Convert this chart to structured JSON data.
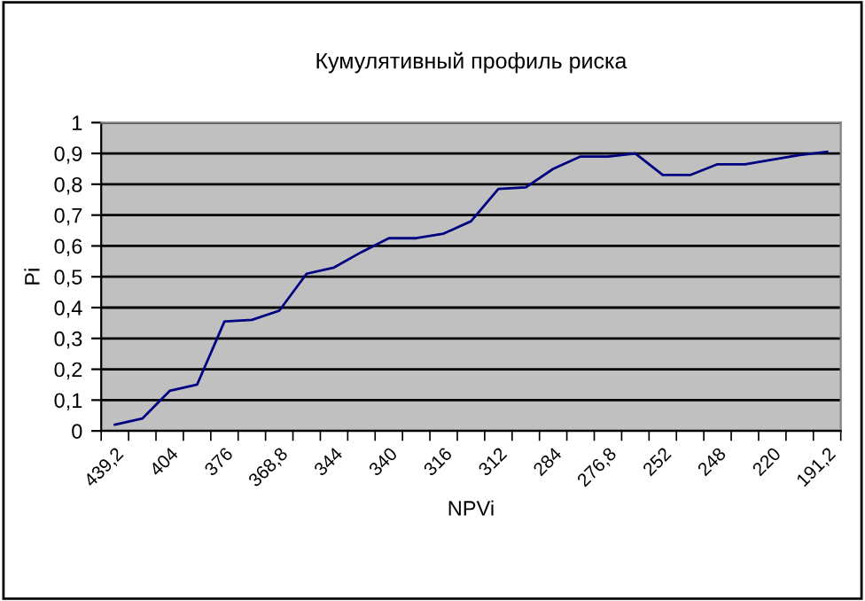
{
  "chart_data": {
    "type": "line",
    "title": "Кумулятивный профиль риска",
    "xlabel": "NPVi",
    "ylabel": "Pi",
    "categories": [
      "439,2",
      null,
      "404",
      null,
      "376",
      null,
      "368,8",
      null,
      "344",
      null,
      "340",
      null,
      "316",
      null,
      "312",
      null,
      "284",
      null,
      "276,8",
      null,
      "252",
      null,
      "248",
      null,
      "220",
      null,
      "191,2"
    ],
    "series": [
      {
        "color": "#000080",
        "values": [
          0.02,
          0.04,
          0.13,
          0.15,
          0.355,
          0.36,
          0.39,
          0.51,
          0.53,
          0.58,
          0.625,
          0.625,
          0.64,
          0.68,
          0.785,
          0.79,
          0.85,
          0.89,
          0.89,
          0.9,
          0.83,
          0.83,
          0.865,
          0.865,
          0.88,
          0.895,
          0.905
        ]
      }
    ],
    "ylim": [
      0,
      1
    ],
    "yticks": [
      0,
      {
        "value": 0.1,
        "label": "0,1"
      },
      {
        "value": 0.2,
        "label": "0,2"
      },
      {
        "value": 0.3,
        "label": "0,3"
      },
      {
        "value": 0.4,
        "label": "0,4"
      },
      {
        "value": 0.5,
        "label": "0,5"
      },
      {
        "value": 0.6,
        "label": "0,6"
      },
      {
        "value": 0.7,
        "label": "0,7"
      },
      {
        "value": 0.8,
        "label": "0,8"
      },
      {
        "value": 0.9,
        "label": "0,9"
      },
      1
    ],
    "grid": "y",
    "marker": "none",
    "line_style": "solid"
  }
}
